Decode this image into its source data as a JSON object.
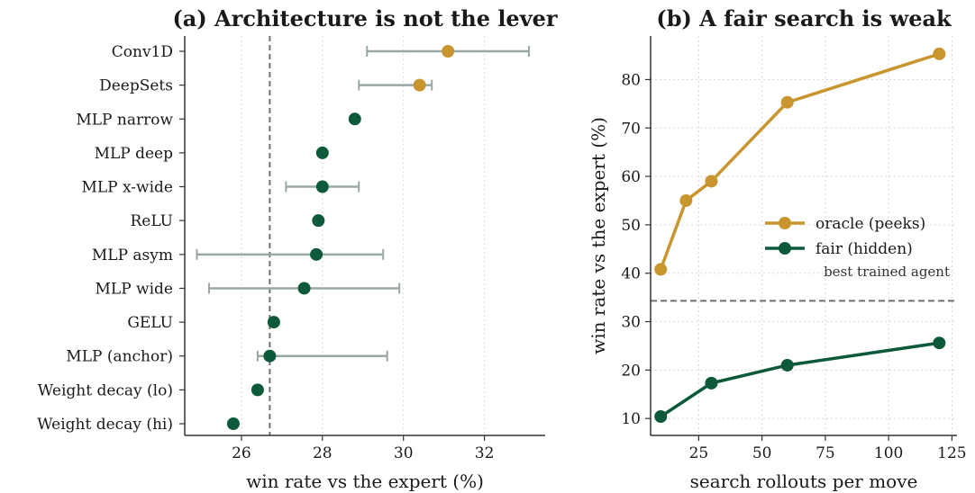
{
  "chart_data": [
    {
      "type": "dot-errorbar",
      "title": "(a) Architecture is not the lever",
      "xlabel": "win rate vs the expert (%)",
      "ylabel": "",
      "xlim": [
        24.6,
        33.5
      ],
      "xticks": [
        26,
        28,
        30,
        32
      ],
      "reference_line": {
        "x": 26.7,
        "style": "dashed"
      },
      "grid": true,
      "items": [
        {
          "label": "Conv1D",
          "value": 31.1,
          "err_low": 29.1,
          "err_high": 33.1,
          "highlight": true
        },
        {
          "label": "DeepSets",
          "value": 30.4,
          "err_low": 28.9,
          "err_high": 30.7,
          "highlight": true
        },
        {
          "label": "MLP narrow",
          "value": 28.8,
          "err_low": null,
          "err_high": null,
          "highlight": false
        },
        {
          "label": "MLP deep",
          "value": 28.0,
          "err_low": null,
          "err_high": null,
          "highlight": false
        },
        {
          "label": "MLP x-wide",
          "value": 28.0,
          "err_low": 27.1,
          "err_high": 28.9,
          "highlight": false
        },
        {
          "label": "ReLU",
          "value": 27.9,
          "err_low": null,
          "err_high": null,
          "highlight": false
        },
        {
          "label": "MLP asym",
          "value": 27.85,
          "err_low": 24.9,
          "err_high": 29.5,
          "highlight": false
        },
        {
          "label": "MLP wide",
          "value": 27.55,
          "err_low": 25.2,
          "err_high": 29.9,
          "highlight": false
        },
        {
          "label": "GELU",
          "value": 26.8,
          "err_low": null,
          "err_high": null,
          "highlight": false
        },
        {
          "label": "MLP (anchor)",
          "value": 26.7,
          "err_low": 26.4,
          "err_high": 29.6,
          "highlight": false
        },
        {
          "label": "Weight decay (lo)",
          "value": 26.4,
          "err_low": null,
          "err_high": null,
          "highlight": false
        },
        {
          "label": "Weight decay (hi)",
          "value": 25.8,
          "err_low": null,
          "err_high": null,
          "highlight": false
        }
      ]
    },
    {
      "type": "line",
      "title": "(b) A fair search is weak",
      "xlabel": "search rollouts per move",
      "ylabel": "win rate vs the expert (%)",
      "xlim": [
        6,
        127
      ],
      "ylim": [
        6.5,
        89
      ],
      "xticks": [
        25,
        50,
        75,
        100,
        125
      ],
      "yticks": [
        10,
        20,
        30,
        40,
        50,
        60,
        70,
        80
      ],
      "grid": true,
      "legend_position": "center-right",
      "reference_line": {
        "y": 34.3,
        "style": "dashed",
        "label": "best trained agent"
      },
      "series": [
        {
          "name": "oracle (peeks)",
          "x": [
            10,
            20,
            30,
            60,
            120
          ],
          "y": [
            40.8,
            55.0,
            59.0,
            75.3,
            85.3
          ]
        },
        {
          "name": "fair (hidden)",
          "x": [
            10,
            30,
            60,
            120
          ],
          "y": [
            10.4,
            17.3,
            21.0,
            25.6
          ]
        }
      ]
    }
  ],
  "colors": {
    "gold": "#c9952f",
    "green": "#0d5a3a",
    "errorbar": "#9aa8a2",
    "reference": "#707070",
    "grid": "#d8d8d8",
    "axis": "#333333"
  }
}
